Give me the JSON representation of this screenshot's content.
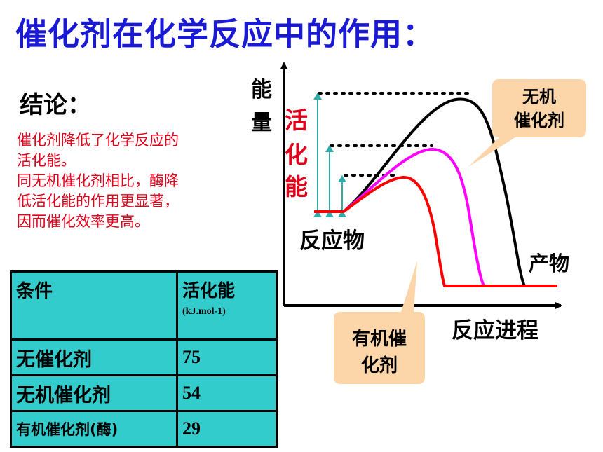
{
  "title": "催化剂在化学反应中的作用：",
  "conclusion": {
    "heading": "结论：",
    "lines": [
      "催化剂降低了化学反应的",
      "活化能。",
      "同无机催化剂相比，酶降",
      "低活化能的作用更显著，",
      "因而催化效率更高。"
    ]
  },
  "table": {
    "header": {
      "condition": "条件",
      "activation": "活化能",
      "unit": "(kJ.mol-1)"
    },
    "rows": [
      {
        "condition": "无催化剂",
        "value": "75"
      },
      {
        "condition": "无机催化剂",
        "value": "54"
      },
      {
        "condition": "有机催化剂(酶)",
        "value": "29"
      }
    ]
  },
  "diagram": {
    "y_axis_label": [
      "能",
      "量"
    ],
    "activation_label": [
      "活",
      "化",
      "能"
    ],
    "reactant_label": "反应物",
    "product_label": "产物",
    "x_axis_label": "反应进程",
    "callout_inorganic": [
      "无机",
      "催化剂"
    ],
    "callout_organic": [
      "有机催",
      "化剂"
    ],
    "colors": {
      "no_catalyst": "#000000",
      "inorganic_catalyst": "#ff00ff",
      "enzyme": "#ff0000",
      "activation_arrow": "#33aaaa",
      "callout_fill": "#fcd5a8"
    }
  }
}
